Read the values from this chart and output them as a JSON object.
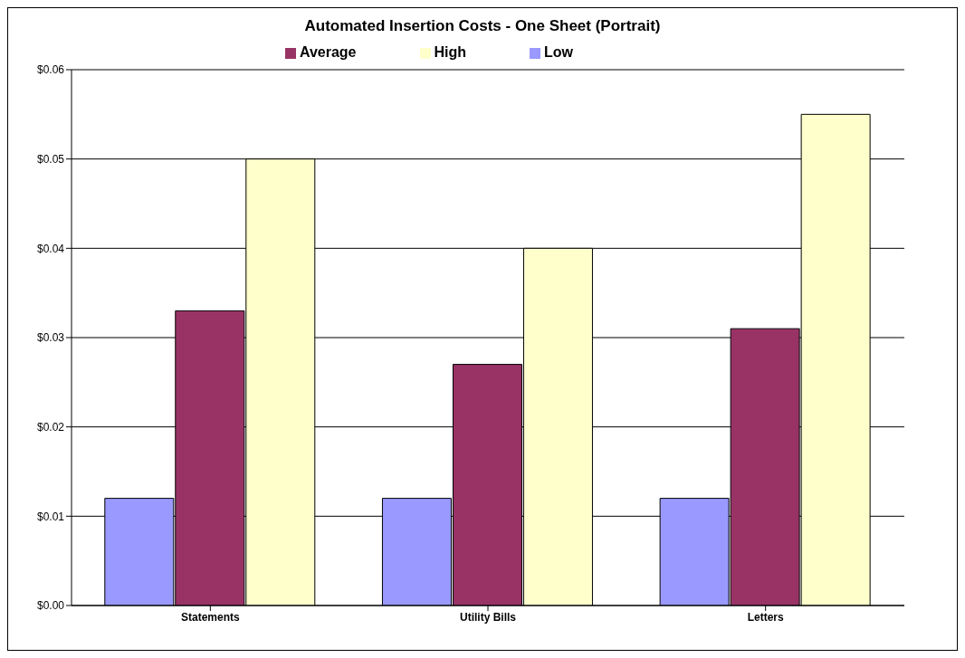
{
  "chart_data": {
    "type": "bar",
    "title": "Automated Insertion Costs - One Sheet (Portrait)",
    "categories": [
      "Statements",
      "Utility Bills",
      "Letters"
    ],
    "series": [
      {
        "name": "Low",
        "color": "#9999ff",
        "values": [
          0.012,
          0.012,
          0.012
        ]
      },
      {
        "name": "Average",
        "color": "#993366",
        "values": [
          0.033,
          0.027,
          0.031
        ]
      },
      {
        "name": "High",
        "color": "#ffffcc",
        "values": [
          0.05,
          0.04,
          0.055
        ]
      }
    ],
    "ylim": [
      0,
      0.06
    ],
    "yticks": [
      {
        "value": 0,
        "label": "$0.00"
      },
      {
        "value": 0.01,
        "label": "$0.01"
      },
      {
        "value": 0.02,
        "label": "$0.02"
      },
      {
        "value": 0.03,
        "label": "$0.03"
      },
      {
        "value": 0.04,
        "label": "$0.04"
      },
      {
        "value": 0.05,
        "label": "$0.05"
      },
      {
        "value": 0.06,
        "label": "$0.06"
      }
    ],
    "grid": "y",
    "legend": "top"
  }
}
